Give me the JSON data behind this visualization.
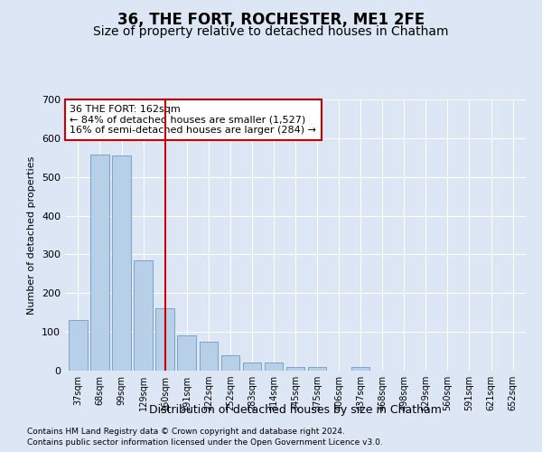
{
  "title": "36, THE FORT, ROCHESTER, ME1 2FE",
  "subtitle": "Size of property relative to detached houses in Chatham",
  "xlabel": "Distribution of detached houses by size in Chatham",
  "ylabel": "Number of detached properties",
  "footnote1": "Contains HM Land Registry data © Crown copyright and database right 2024.",
  "footnote2": "Contains public sector information licensed under the Open Government Licence v3.0.",
  "annotation_line1": "36 THE FORT: 162sqm",
  "annotation_line2": "← 84% of detached houses are smaller (1,527)",
  "annotation_line3": "16% of semi-detached houses are larger (284) →",
  "bar_color": "#b8cfe8",
  "bar_edge_color": "#5b8db8",
  "vline_color": "#cc0000",
  "vline_x": 4.0,
  "categories": [
    "37sqm",
    "68sqm",
    "99sqm",
    "129sqm",
    "160sqm",
    "191sqm",
    "222sqm",
    "252sqm",
    "283sqm",
    "314sqm",
    "345sqm",
    "375sqm",
    "406sqm",
    "437sqm",
    "468sqm",
    "498sqm",
    "529sqm",
    "560sqm",
    "591sqm",
    "621sqm",
    "652sqm"
  ],
  "values": [
    130,
    558,
    555,
    285,
    160,
    90,
    75,
    40,
    20,
    20,
    10,
    10,
    0,
    10,
    0,
    0,
    0,
    0,
    0,
    0,
    0
  ],
  "ylim": [
    0,
    700
  ],
  "yticks": [
    0,
    100,
    200,
    300,
    400,
    500,
    600,
    700
  ],
  "background_color": "#dce6f5",
  "plot_bg_color": "#dce6f5",
  "grid_color": "#ffffff",
  "title_fontsize": 12,
  "subtitle_fontsize": 10
}
